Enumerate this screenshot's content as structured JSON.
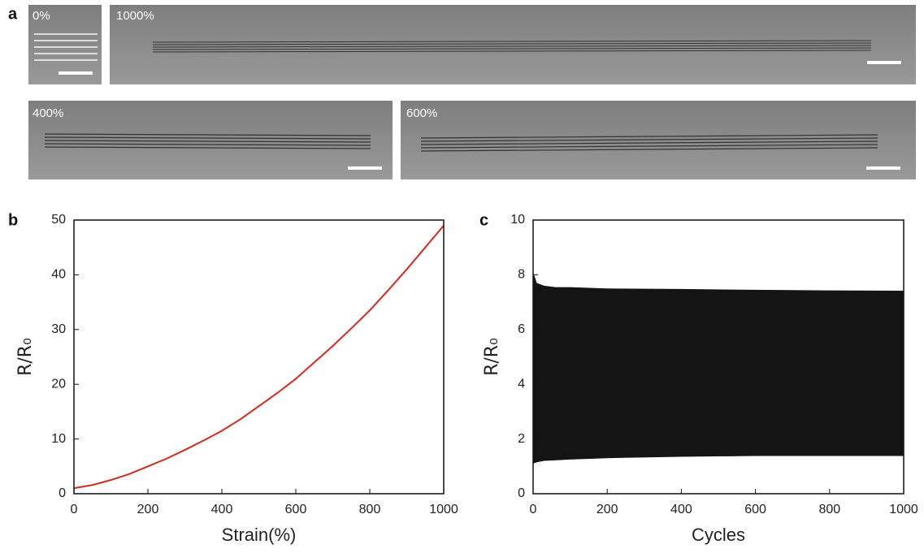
{
  "panel_labels": [
    "a",
    "b",
    "c"
  ],
  "photos": [
    {
      "label": "0%"
    },
    {
      "label": "1000%"
    },
    {
      "label": "400%"
    },
    {
      "label": "600%"
    }
  ],
  "chart_data": [
    {
      "type": "line",
      "x_label": "Strain(%)",
      "y_label": "R/R₀",
      "color": "#d42a1e",
      "x": [
        0,
        50,
        100,
        150,
        200,
        250,
        300,
        350,
        400,
        450,
        500,
        550,
        600,
        650,
        700,
        750,
        800,
        850,
        900,
        950,
        1000
      ],
      "values": [
        1,
        1.6,
        2.5,
        3.6,
        5,
        6.4,
        8,
        9.7,
        11.5,
        13.6,
        16,
        18.4,
        21,
        24,
        27,
        30.2,
        33.5,
        37.2,
        41,
        45,
        49
      ],
      "xlim": [
        0,
        1000
      ],
      "xticks": [
        0,
        200,
        400,
        600,
        800,
        1000
      ],
      "ylim": [
        0,
        50
      ],
      "yticks": [
        0,
        10,
        20,
        30,
        40,
        50
      ]
    },
    {
      "type": "area",
      "x_label": "Cycles",
      "y_label": "R/R₀",
      "color": "#141414",
      "x": [
        0,
        10,
        30,
        60,
        100,
        200,
        400,
        600,
        800,
        1000
      ],
      "upper": [
        8.1,
        7.7,
        7.6,
        7.55,
        7.55,
        7.5,
        7.48,
        7.45,
        7.43,
        7.42
      ],
      "lower": [
        1.1,
        1.15,
        1.2,
        1.22,
        1.25,
        1.3,
        1.35,
        1.38,
        1.38,
        1.38
      ],
      "xlim": [
        0,
        1000
      ],
      "xticks": [
        0,
        200,
        400,
        600,
        800,
        1000
      ],
      "ylim": [
        0,
        10
      ],
      "yticks": [
        0,
        2,
        4,
        6,
        8,
        10
      ]
    }
  ]
}
